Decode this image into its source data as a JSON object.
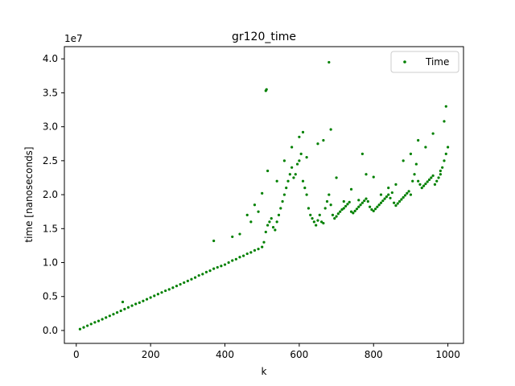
{
  "chart_data": {
    "type": "scatter",
    "title": "gr120_time",
    "xlabel": "k",
    "ylabel": "time [nanoseconds]",
    "y_offset_label": "1e7",
    "xlim": [
      -32,
      1042
    ],
    "ylim": [
      -1900000,
      41800000
    ],
    "xticks": [
      0,
      200,
      400,
      600,
      800,
      1000
    ],
    "xtick_labels": [
      "0",
      "200",
      "400",
      "600",
      "800",
      "1000"
    ],
    "yticks": [
      0,
      5000000,
      10000000,
      15000000,
      20000000,
      25000000,
      30000000,
      35000000,
      40000000
    ],
    "ytick_labels": [
      "0.0",
      "0.5",
      "1.0",
      "1.5",
      "2.0",
      "2.5",
      "3.0",
      "3.5",
      "4.0"
    ],
    "grid": false,
    "legend": {
      "position": "top-right",
      "entries": [
        "Time"
      ]
    },
    "series": [
      {
        "name": "Time",
        "color": "#008000",
        "marker": "circle",
        "x": [
          10,
          20,
          30,
          40,
          50,
          60,
          70,
          80,
          90,
          100,
          110,
          120,
          130,
          140,
          150,
          160,
          170,
          180,
          190,
          200,
          210,
          220,
          230,
          240,
          250,
          260,
          270,
          280,
          290,
          300,
          310,
          320,
          330,
          340,
          350,
          360,
          370,
          380,
          390,
          400,
          410,
          420,
          430,
          440,
          450,
          460,
          470,
          480,
          490,
          500,
          505,
          510,
          515,
          520,
          525,
          530,
          535,
          540,
          545,
          550,
          555,
          560,
          565,
          570,
          575,
          580,
          585,
          590,
          595,
          600,
          605,
          610,
          615,
          620,
          625,
          630,
          635,
          640,
          645,
          650,
          655,
          660,
          665,
          670,
          675,
          680,
          685,
          690,
          695,
          700,
          705,
          710,
          715,
          720,
          725,
          730,
          735,
          740,
          745,
          750,
          755,
          760,
          765,
          770,
          775,
          780,
          785,
          790,
          795,
          800,
          805,
          810,
          815,
          820,
          825,
          830,
          835,
          840,
          845,
          850,
          855,
          860,
          865,
          870,
          875,
          880,
          885,
          890,
          895,
          900,
          905,
          910,
          915,
          920,
          925,
          930,
          935,
          940,
          945,
          950,
          955,
          960,
          965,
          970,
          975,
          980,
          985,
          990,
          995,
          1000,
          125,
          370,
          420,
          440,
          460,
          470,
          480,
          490,
          500,
          510,
          512,
          515,
          540,
          560,
          580,
          600,
          610,
          620,
          650,
          665,
          680,
          685,
          700,
          720,
          740,
          760,
          770,
          780,
          800,
          820,
          840,
          860,
          880,
          900,
          920,
          940,
          960,
          980,
          990,
          995
        ],
        "y": [
          200000,
          450000,
          700000,
          950000,
          1200000,
          1400000,
          1650000,
          1900000,
          2150000,
          2400000,
          2650000,
          2900000,
          3150000,
          3400000,
          3650000,
          3900000,
          4100000,
          4350000,
          4600000,
          4850000,
          5100000,
          5350000,
          5600000,
          5850000,
          6050000,
          6300000,
          6550000,
          6800000,
          7050000,
          7300000,
          7550000,
          7800000,
          8100000,
          8300000,
          8600000,
          8800000,
          9100000,
          9300000,
          9500000,
          9700000,
          10000000,
          10300000,
          10500000,
          10800000,
          11000000,
          11300000,
          11500000,
          11800000,
          12000000,
          12300000,
          13000000,
          14500000,
          15500000,
          16000000,
          16500000,
          15200000,
          14800000,
          16000000,
          17000000,
          18000000,
          19000000,
          20000000,
          21000000,
          22000000,
          23000000,
          24000000,
          22500000,
          23000000,
          24500000,
          25000000,
          26000000,
          22000000,
          21000000,
          20000000,
          18000000,
          17000000,
          16500000,
          16000000,
          15500000,
          16200000,
          17000000,
          16000000,
          15800000,
          18000000,
          19000000,
          20000000,
          18500000,
          17000000,
          16500000,
          16800000,
          17200000,
          17500000,
          17800000,
          18000000,
          18300000,
          18600000,
          18900000,
          17500000,
          17300000,
          17600000,
          17900000,
          18200000,
          18500000,
          18800000,
          19100000,
          19400000,
          19000000,
          18200000,
          17800000,
          17600000,
          17900000,
          18200000,
          18500000,
          18800000,
          19100000,
          19400000,
          19700000,
          20000000,
          19500000,
          20300000,
          18800000,
          18400000,
          18700000,
          19000000,
          19300000,
          19600000,
          19900000,
          20200000,
          20500000,
          20000000,
          22000000,
          23000000,
          24500000,
          22000000,
          21500000,
          21000000,
          21300000,
          21600000,
          21900000,
          22200000,
          22500000,
          22800000,
          21500000,
          22000000,
          22500000,
          23000000,
          24000000,
          25000000,
          26000000,
          27000000,
          4200000,
          13200000,
          13800000,
          14200000,
          17000000,
          16000000,
          18500000,
          17500000,
          20200000,
          35300000,
          35500000,
          23500000,
          22000000,
          25000000,
          27000000,
          28500000,
          29200000,
          25500000,
          27500000,
          28000000,
          39500000,
          29600000,
          22500000,
          19000000,
          20800000,
          19200000,
          26000000,
          23000000,
          22600000,
          20000000,
          21000000,
          21500000,
          25000000,
          26000000,
          28000000,
          27000000,
          29000000,
          23500000,
          30800000,
          33000000
        ]
      }
    ]
  }
}
